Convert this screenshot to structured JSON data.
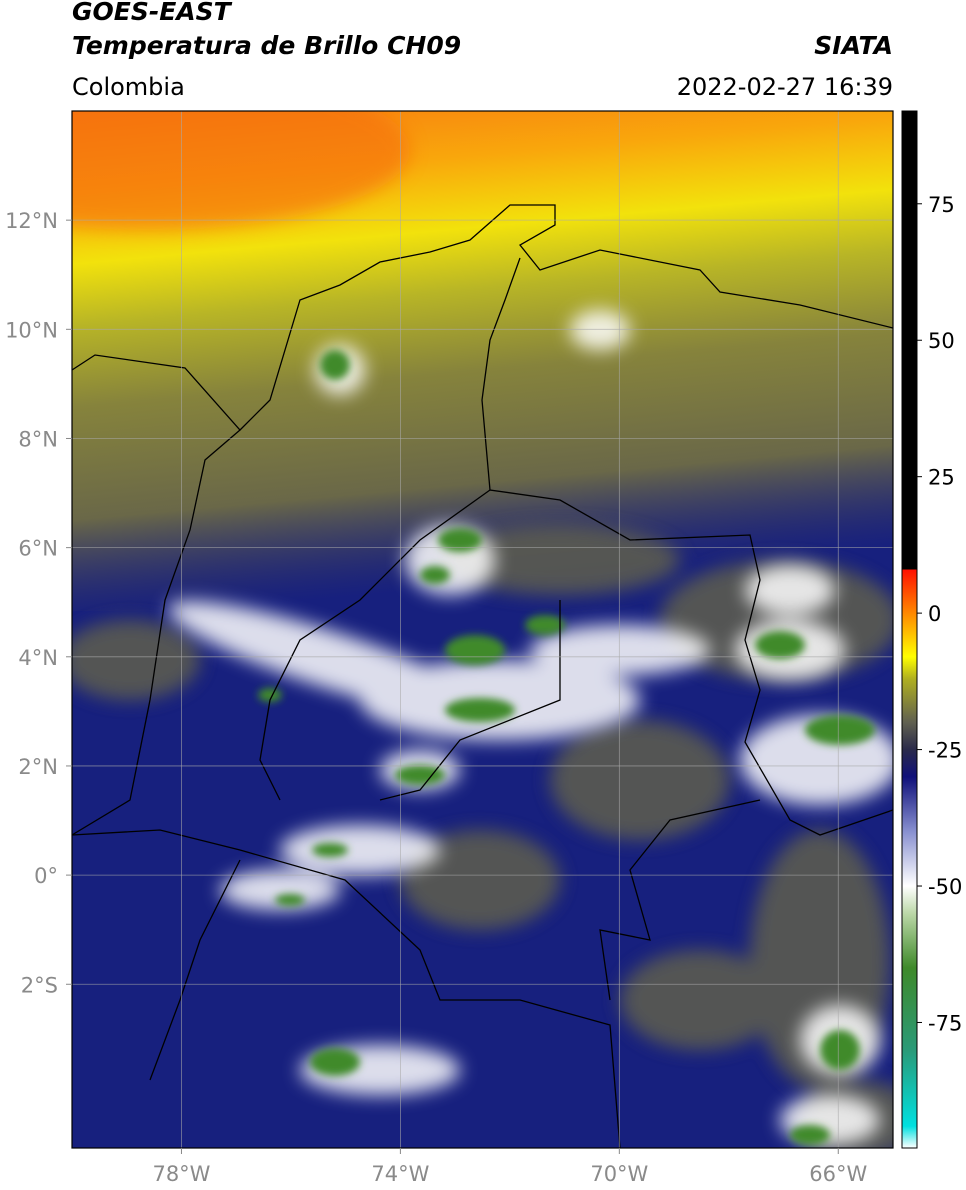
{
  "header": {
    "title": "GOES-EAST",
    "subtitle": "Temperatura de Brillo CH09",
    "source": "SIATA",
    "region": "Colombia",
    "datetime": "2022-02-27 16:39"
  },
  "map": {
    "xlim": [
      -80,
      -65
    ],
    "ylim": [
      -5,
      14
    ],
    "xticks": [
      {
        "value": -78,
        "label": "78°W"
      },
      {
        "value": -74,
        "label": "74°W"
      },
      {
        "value": -70,
        "label": "70°W"
      },
      {
        "value": -66,
        "label": "66°W"
      }
    ],
    "yticks": [
      {
        "value": 12,
        "label": "12°N"
      },
      {
        "value": 10,
        "label": "10°N"
      },
      {
        "value": 8,
        "label": "8°N"
      },
      {
        "value": 6,
        "label": "6°N"
      },
      {
        "value": 4,
        "label": "4°N"
      },
      {
        "value": 2,
        "label": "2°N"
      },
      {
        "value": 0,
        "label": "0°"
      },
      {
        "value": -2,
        "label": "2°S"
      }
    ]
  },
  "colorbar": {
    "lim": [
      -98,
      92
    ],
    "ticks": [
      75,
      50,
      25,
      0,
      -25,
      -50,
      -75
    ],
    "stops": [
      {
        "value": -98,
        "color": "#ffffff"
      },
      {
        "value": -94,
        "color": "#00e0e0"
      },
      {
        "value": -80,
        "color": "#2a9a78"
      },
      {
        "value": -65,
        "color": "#3f8a2a"
      },
      {
        "value": -55,
        "color": "#bcd8a8"
      },
      {
        "value": -50,
        "color": "#ffffff"
      },
      {
        "value": -40,
        "color": "#8890d0"
      },
      {
        "value": -30,
        "color": "#10107a"
      },
      {
        "value": -25,
        "color": "#2a2a4a"
      },
      {
        "value": -20,
        "color": "#606050"
      },
      {
        "value": -12,
        "color": "#b0b020"
      },
      {
        "value": -8,
        "color": "#ffff00"
      },
      {
        "value": 0,
        "color": "#ff8800"
      },
      {
        "value": 8,
        "color": "#ff1000"
      },
      {
        "value": 8,
        "color": "#000000"
      },
      {
        "value": 92,
        "color": "#000000"
      }
    ]
  }
}
